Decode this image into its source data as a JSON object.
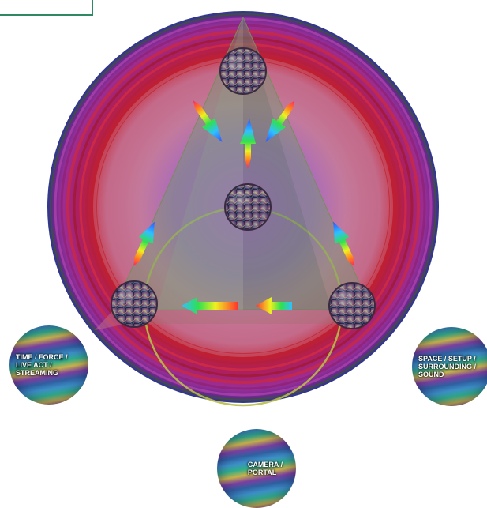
{
  "bubbles": {
    "time": {
      "label": "TIME / FORCE /\nLIVE ACT /\nSTREAMING"
    },
    "space": {
      "label": "SPACE / SETUP /\nSURROUNDING /\nSOUND"
    },
    "camera": {
      "label": "CAMERA /\nPORTAL"
    }
  },
  "colors": {
    "outer_ring": "#9a2f7a",
    "red_ring": "#c21f2a",
    "inner_disc": "#c86a8a",
    "center_glow": "#a044d8",
    "triangle_fill": "#6f8a70",
    "circle_outline": "#b4b84a"
  },
  "icons": [
    "rainbow-arrow-icon",
    "marble-orb-icon"
  ]
}
